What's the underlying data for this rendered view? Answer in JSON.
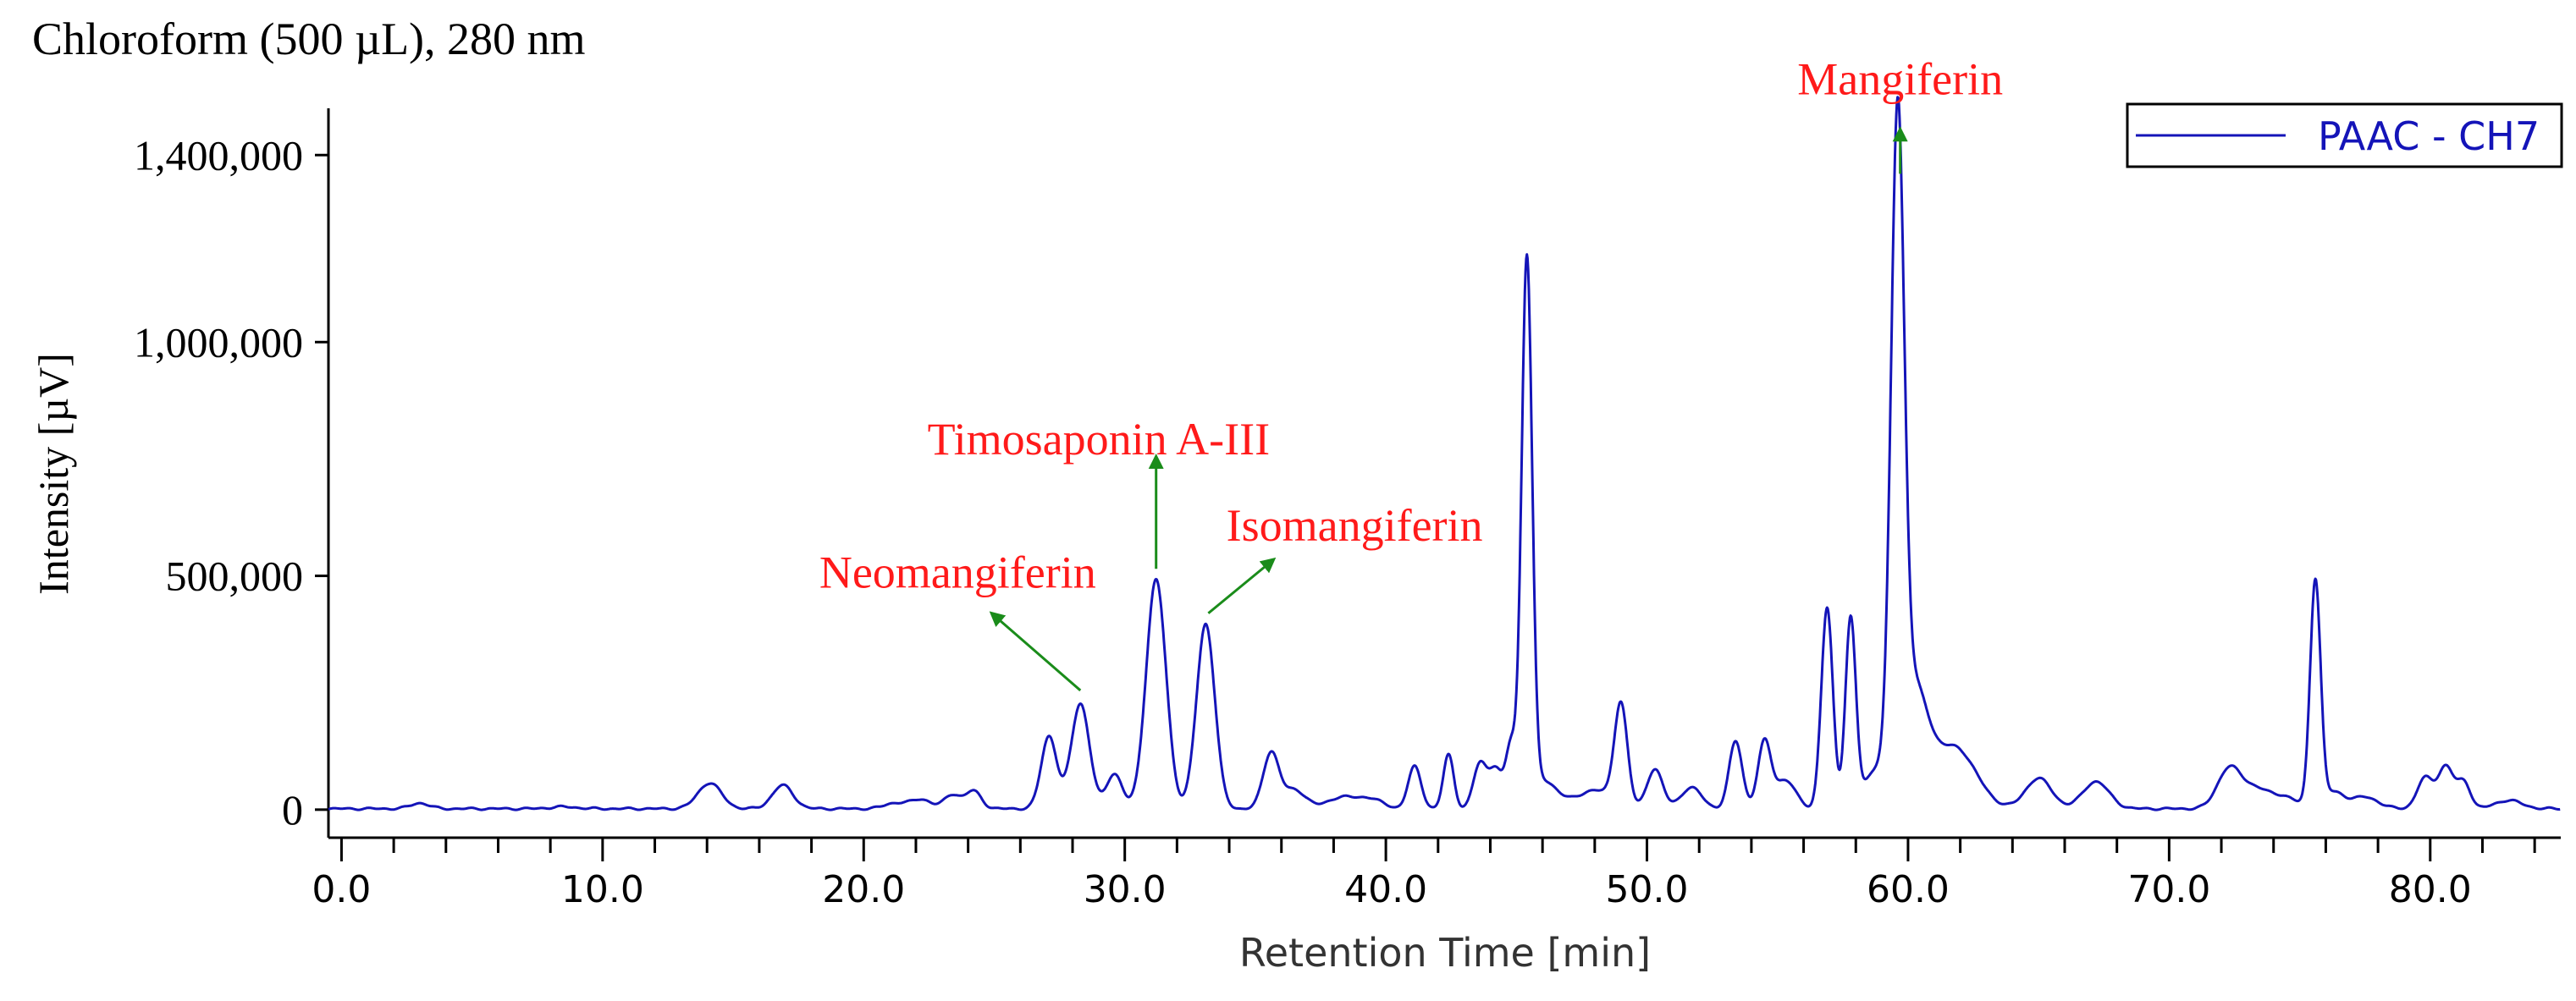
{
  "chart_data": {
    "type": "line",
    "title": "Chloroform (500 µL), 280 nm",
    "xlabel": "Retention Time [min]",
    "ylabel": "Intensity [µV]",
    "xlim": [
      -0.5,
      85.0
    ],
    "ylim": [
      -60000,
      1500000
    ],
    "x_ticks": [
      {
        "value": 0,
        "label": "0.0"
      },
      {
        "value": 10,
        "label": "10.0"
      },
      {
        "value": 20,
        "label": "20.0"
      },
      {
        "value": 30,
        "label": "30.0"
      },
      {
        "value": 40,
        "label": "40.0"
      },
      {
        "value": 50,
        "label": "50.0"
      },
      {
        "value": 60,
        "label": "60.0"
      },
      {
        "value": 70,
        "label": "70.0"
      },
      {
        "value": 80,
        "label": "80.0"
      }
    ],
    "x_minor_step": 2,
    "y_ticks": [
      {
        "value": 0,
        "label": "0"
      },
      {
        "value": 500000,
        "label": "500,000"
      },
      {
        "value": 1000000,
        "label": "1,000,000"
      },
      {
        "value": 1400000,
        "label": "1,400,000"
      }
    ],
    "legend": {
      "label": "PAAC - CH7",
      "position": "top-right"
    },
    "colors": {
      "trace": "#1414b8",
      "annotation": "#ff1a1a",
      "arrow": "#1a8c1a",
      "axis": "#000000"
    },
    "baseline": 2000,
    "series": [
      {
        "name": "PAAC - CH7",
        "peaks": [
          [
            3.0,
            12000,
            0.35
          ],
          [
            8.5,
            4000,
            0.5
          ],
          [
            14.1,
            55000,
            0.45
          ],
          [
            16.9,
            50000,
            0.4
          ],
          [
            21.2,
            12000,
            0.4
          ],
          [
            22.2,
            20000,
            0.4
          ],
          [
            23.4,
            30000,
            0.3
          ],
          [
            24.2,
            38000,
            0.3
          ],
          [
            27.1,
            155000,
            0.3
          ],
          [
            28.3,
            225000,
            0.35
          ],
          [
            29.6,
            75000,
            0.3
          ],
          [
            31.2,
            490000,
            0.38
          ],
          [
            33.1,
            395000,
            0.35
          ],
          [
            35.6,
            118000,
            0.3
          ],
          [
            36.5,
            40000,
            0.45
          ],
          [
            38.3,
            25000,
            0.5
          ],
          [
            39.4,
            22000,
            0.45
          ],
          [
            41.1,
            90000,
            0.25
          ],
          [
            42.4,
            115000,
            0.2
          ],
          [
            43.6,
            95000,
            0.25
          ],
          [
            44.2,
            85000,
            0.25
          ],
          [
            44.8,
            130000,
            0.2
          ],
          [
            45.4,
            1150000,
            0.2
          ],
          [
            46.0,
            60000,
            0.6
          ],
          [
            48.0,
            40000,
            0.6
          ],
          [
            49.0,
            220000,
            0.25
          ],
          [
            50.3,
            85000,
            0.3
          ],
          [
            51.7,
            45000,
            0.4
          ],
          [
            53.4,
            145000,
            0.25
          ],
          [
            54.5,
            140000,
            0.25
          ],
          [
            55.3,
            60000,
            0.4
          ],
          [
            56.9,
            430000,
            0.22
          ],
          [
            57.8,
            400000,
            0.2
          ],
          [
            58.8,
            80000,
            0.5
          ],
          [
            59.6,
            1360000,
            0.25
          ],
          [
            60.2,
            250000,
            0.55
          ],
          [
            61.8,
            130000,
            0.8
          ],
          [
            65.0,
            65000,
            0.5
          ],
          [
            67.2,
            58000,
            0.5
          ],
          [
            72.3,
            85000,
            0.45
          ],
          [
            73.3,
            40000,
            0.5
          ],
          [
            74.4,
            25000,
            0.5
          ],
          [
            75.6,
            485000,
            0.2
          ],
          [
            76.3,
            35000,
            0.4
          ],
          [
            77.5,
            25000,
            0.5
          ],
          [
            79.8,
            65000,
            0.3
          ],
          [
            80.6,
            90000,
            0.3
          ],
          [
            81.3,
            55000,
            0.25
          ],
          [
            83.0,
            18000,
            0.5
          ]
        ]
      }
    ],
    "annotations": [
      {
        "label": "Mangiferin",
        "text_x": 59.7,
        "text_y": 1530000,
        "arrow": [
          [
            59.7,
            1360000
          ],
          [
            59.7,
            1455000
          ]
        ]
      },
      {
        "label": "Timosaponin A-III",
        "text_x": 29.0,
        "text_y": 760000,
        "arrow": [
          [
            31.2,
            515000
          ],
          [
            31.2,
            755000
          ]
        ]
      },
      {
        "label": "Isomangiferin",
        "text_x": 38.8,
        "text_y": 575000,
        "arrow": [
          [
            33.2,
            420000
          ],
          [
            35.7,
            535000
          ]
        ]
      },
      {
        "label": "Neomangiferin",
        "text_x": 23.6,
        "text_y": 475000,
        "arrow": [
          [
            28.3,
            255000
          ],
          [
            24.9,
            420000
          ]
        ]
      }
    ]
  }
}
